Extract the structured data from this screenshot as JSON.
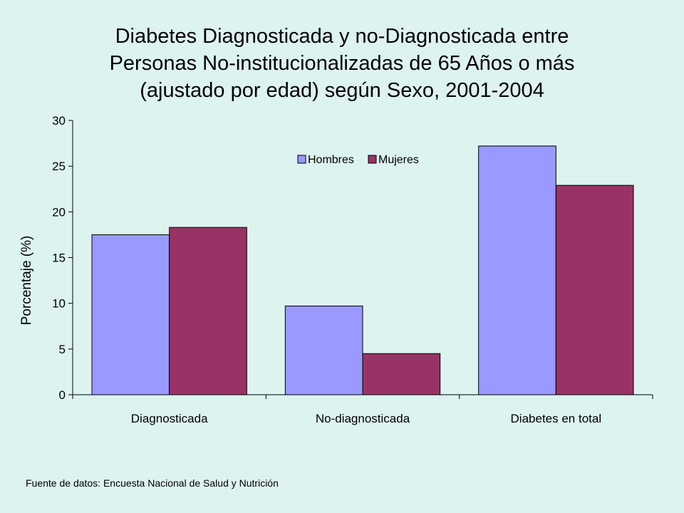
{
  "chart_data": {
    "type": "bar",
    "title_lines": [
      "Diabetes Diagnosticada y no-Diagnosticada entre",
      "Personas No-institucionalizadas de 65 Años o más",
      "(ajustado por edad) según Sexo,  2001-2004"
    ],
    "xlabel": "",
    "ylabel": "Porcentaje (%)",
    "categories": [
      "Diagnosticada",
      "No-diagnosticada",
      "Diabetes en total"
    ],
    "series": [
      {
        "name": "Hombres",
        "values": [
          17.5,
          9.7,
          27.2
        ],
        "color": "#9999ff"
      },
      {
        "name": "Mujeres",
        "values": [
          18.3,
          4.5,
          22.9
        ],
        "color": "#993366"
      }
    ],
    "ylim": [
      0,
      30
    ],
    "yticks": [
      0,
      5,
      10,
      15,
      20,
      25,
      30
    ],
    "grid": false,
    "legend_position": "top-center"
  },
  "source_note": "Fuente de datos:  Encuesta Nacional de Salud y Nutrición"
}
